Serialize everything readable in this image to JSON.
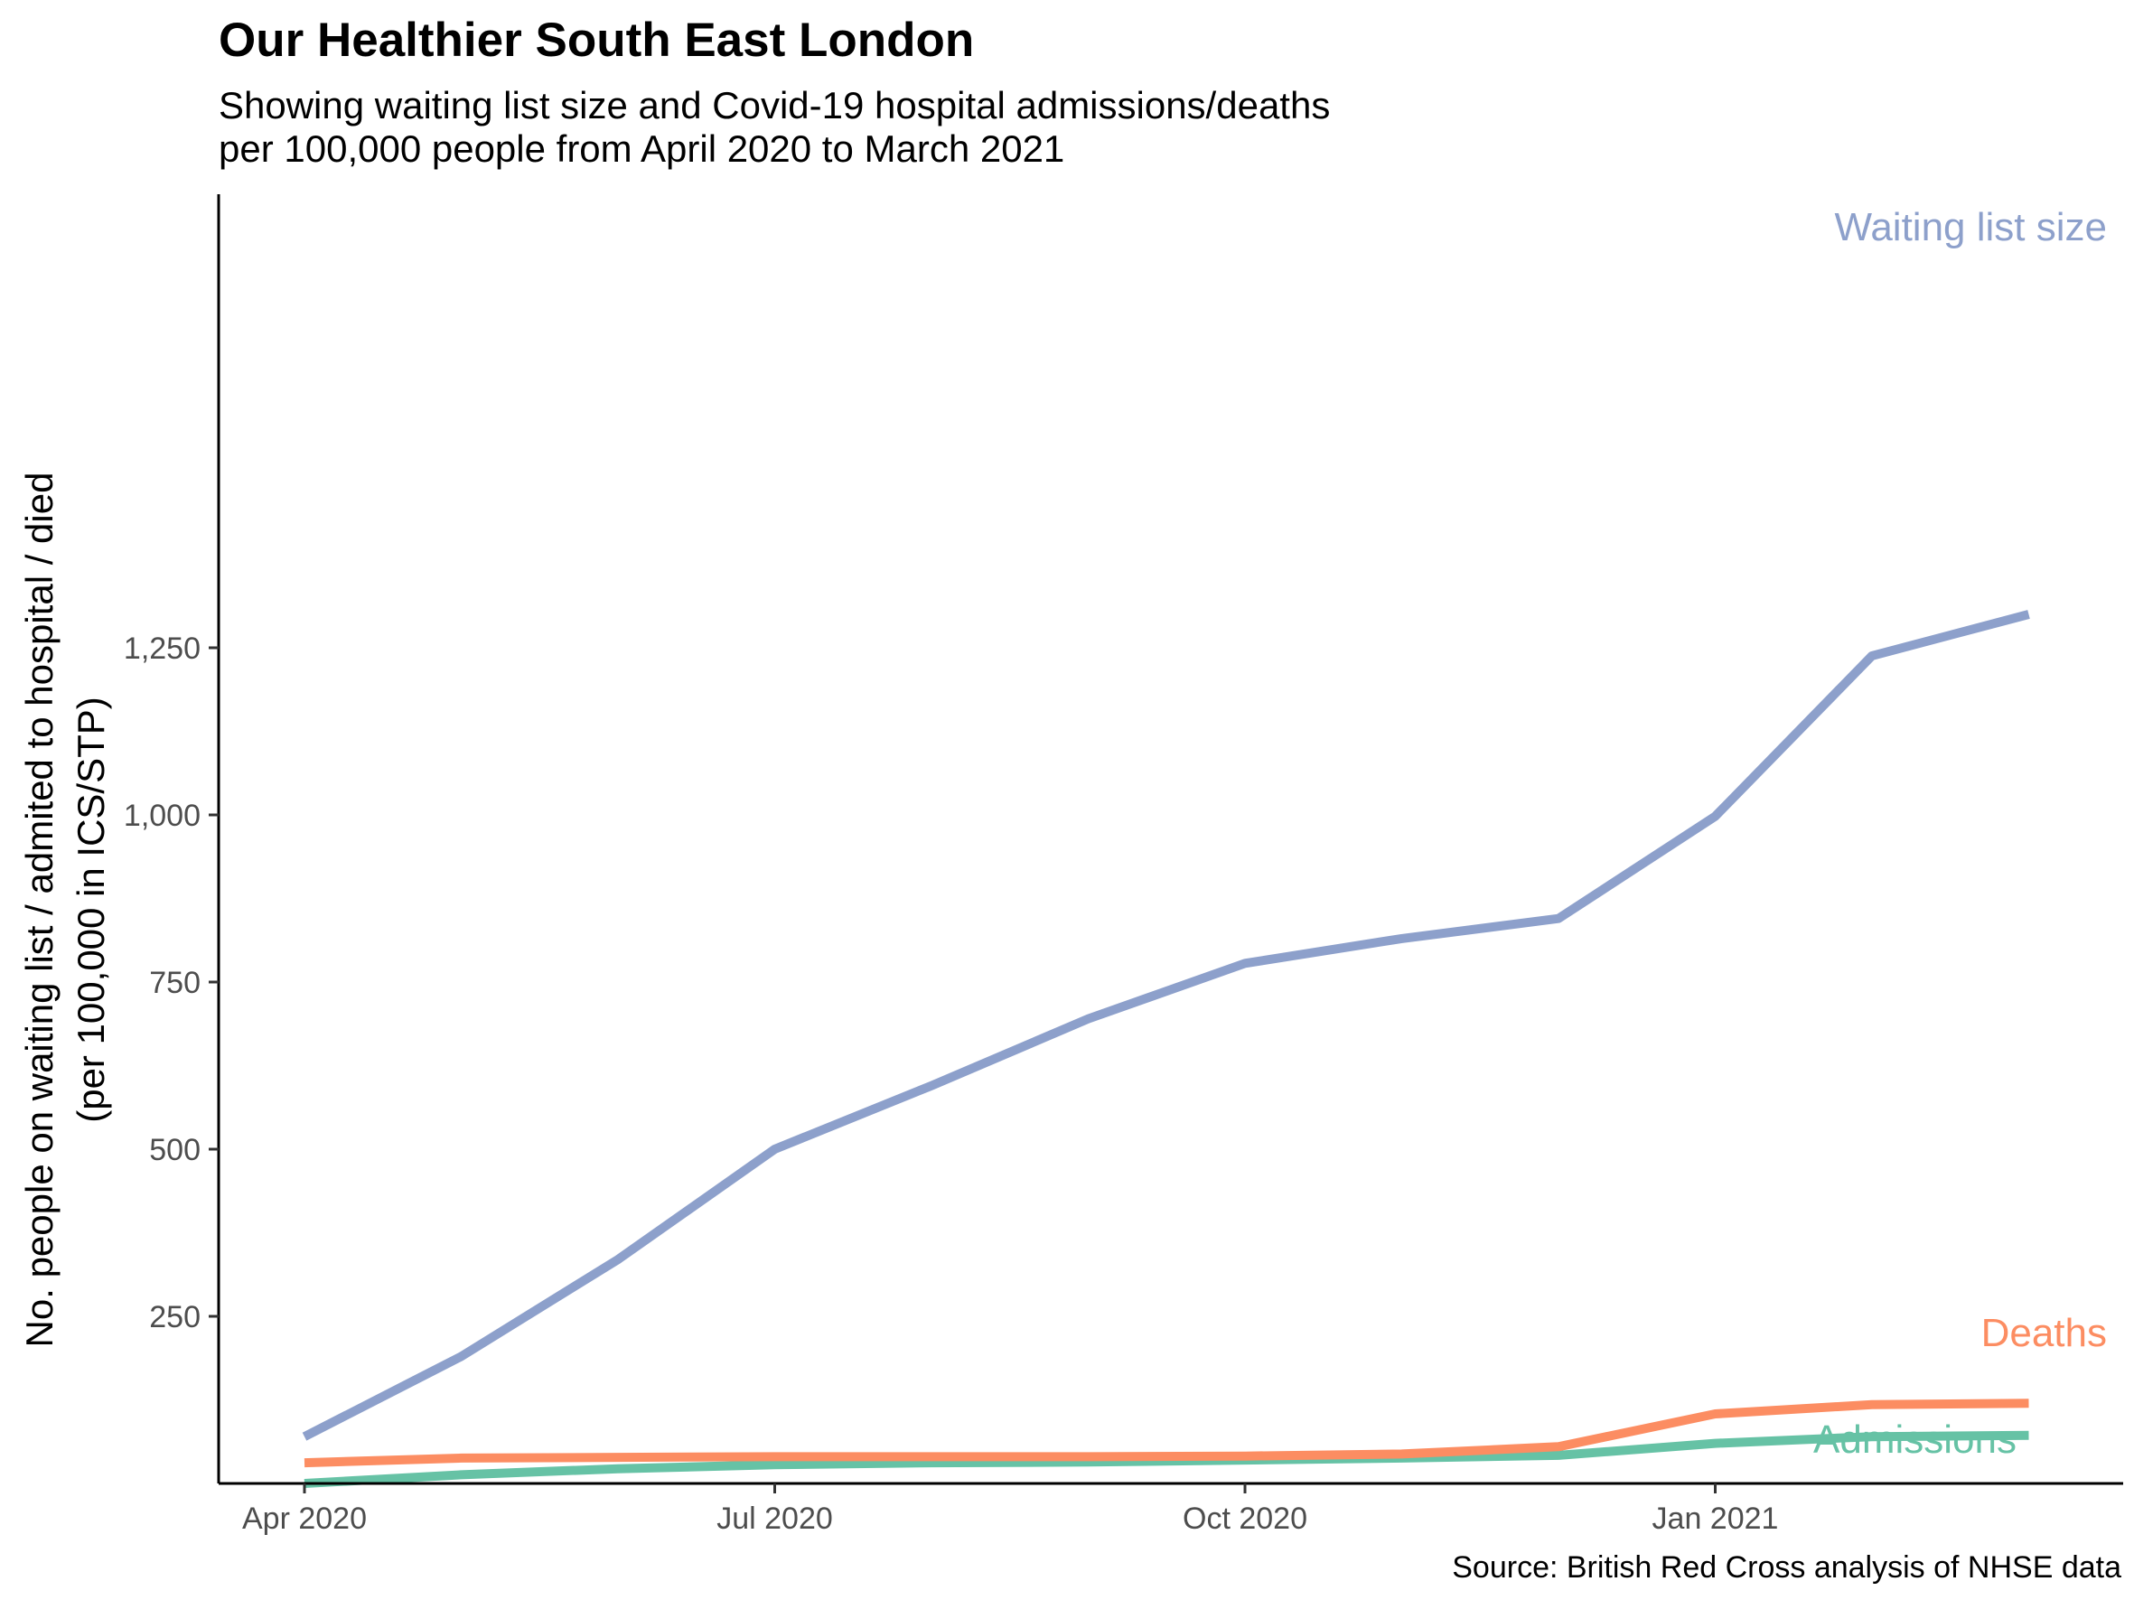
{
  "title": "Our Healthier South East London",
  "subtitle_lines": [
    "Showing waiting list size and Covid-19 hospital admissions/deaths",
    "per 100,000 people from April 2020 to March 2021"
  ],
  "caption": "Source: British Red Cross analysis of NHSE data",
  "chart_data": {
    "type": "line",
    "x": [
      "2020-04",
      "2020-05",
      "2020-06",
      "2020-07",
      "2020-08",
      "2020-09",
      "2020-10",
      "2020-11",
      "2020-12",
      "2021-01",
      "2021-02",
      "2021-03"
    ],
    "ylabel_lines": [
      "No. people on waiting list / admited to hospital / died",
      "(per 100,000 in ICS/STP)"
    ],
    "xticks": [
      {
        "x": "2020-04",
        "label": "Apr 2020"
      },
      {
        "x": "2020-07",
        "label": "Jul 2020"
      },
      {
        "x": "2020-10",
        "label": "Oct 2020"
      },
      {
        "x": "2021-01",
        "label": "Jan 2021"
      }
    ],
    "yticks": [
      {
        "value": 250,
        "label": "250"
      },
      {
        "value": 500,
        "label": "500"
      },
      {
        "value": 750,
        "label": "750"
      },
      {
        "value": 1000,
        "label": "1,000"
      },
      {
        "value": 1250,
        "label": "1,250"
      }
    ],
    "ylim": [
      0,
      1300
    ],
    "grid": false,
    "legend": "direct labels at line ends",
    "series": [
      {
        "name": "Waiting list size",
        "color": "#8DA0CB",
        "values": [
          70,
          190,
          335,
          500,
          595,
          695,
          778,
          815,
          845,
          998,
          1238,
          1300
        ]
      },
      {
        "name": "Deaths",
        "color": "#FC8D62",
        "values": [
          31,
          38,
          39,
          40,
          40,
          40,
          41,
          44,
          55,
          104,
          118,
          120
        ]
      },
      {
        "name": "Admissions",
        "color": "#66C2A5",
        "values": [
          0,
          13,
          22,
          28,
          31,
          32,
          35,
          38,
          42,
          60,
          70,
          72
        ]
      }
    ]
  }
}
